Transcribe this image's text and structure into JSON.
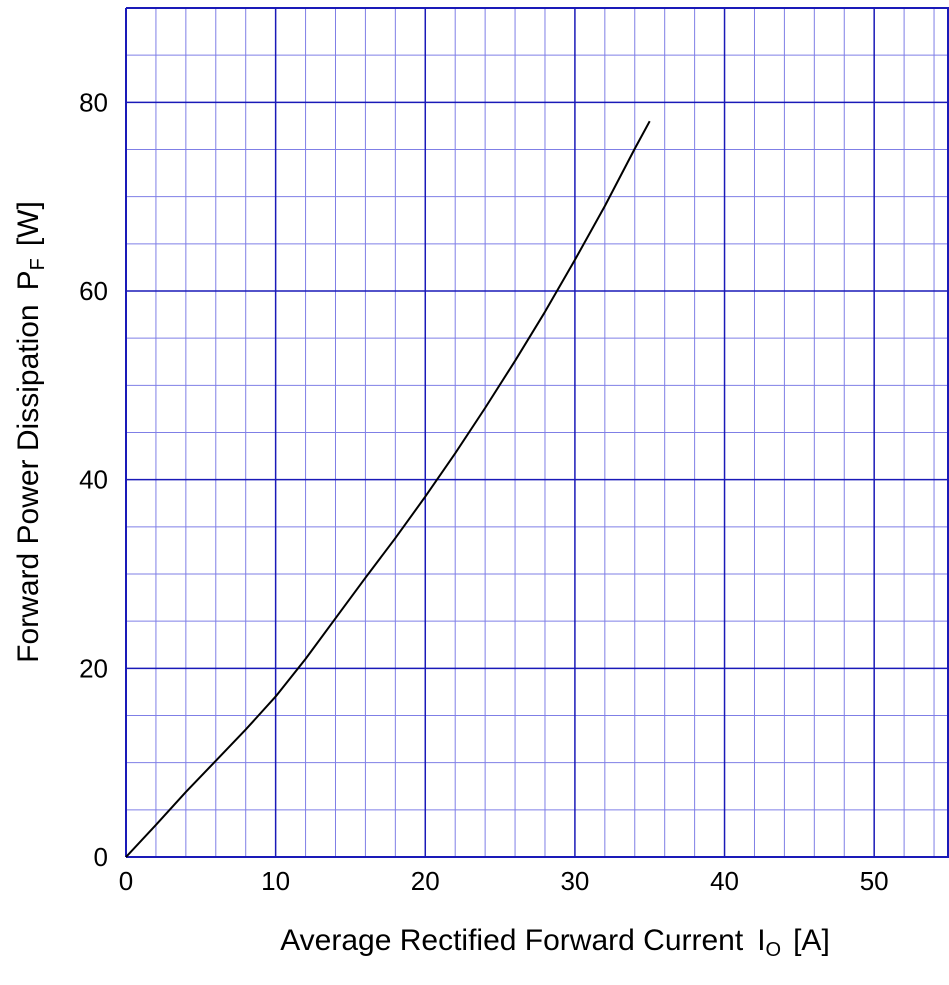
{
  "chart_data": {
    "type": "line",
    "xlabel": {
      "main": "Average Rectified Forward Current",
      "symbol": "I",
      "subscript": "O",
      "unit": "[A]"
    },
    "ylabel": {
      "main": "Forward Power Dissipation",
      "symbol": "P",
      "subscript": "F",
      "unit": "[W]"
    },
    "xlim": [
      0,
      55
    ],
    "ylim": [
      0,
      90
    ],
    "x_ticks": [
      0,
      10,
      20,
      30,
      40,
      50
    ],
    "y_ticks": [
      0,
      20,
      40,
      60,
      80
    ],
    "x_tick_labels": [
      "0",
      "10",
      "20",
      "30",
      "40",
      "50"
    ],
    "y_tick_labels": [
      "0",
      "20",
      "40",
      "60",
      "80"
    ],
    "grid": true,
    "colors": {
      "grid_major": "#1a1ab8",
      "grid_minor": "#7f7fe6",
      "curve": "#000000"
    },
    "series": [
      {
        "x": [
          0,
          2,
          4,
          6,
          8,
          10,
          12,
          14,
          16,
          18,
          20,
          22,
          24,
          26,
          28,
          30,
          32,
          34,
          35
        ],
        "y": [
          0,
          3.4,
          6.9,
          10.2,
          13.5,
          17.0,
          21.0,
          25.3,
          29.6,
          33.8,
          38.2,
          42.8,
          47.6,
          52.6,
          57.8,
          63.3,
          69.0,
          75.1,
          78.0
        ]
      }
    ]
  }
}
